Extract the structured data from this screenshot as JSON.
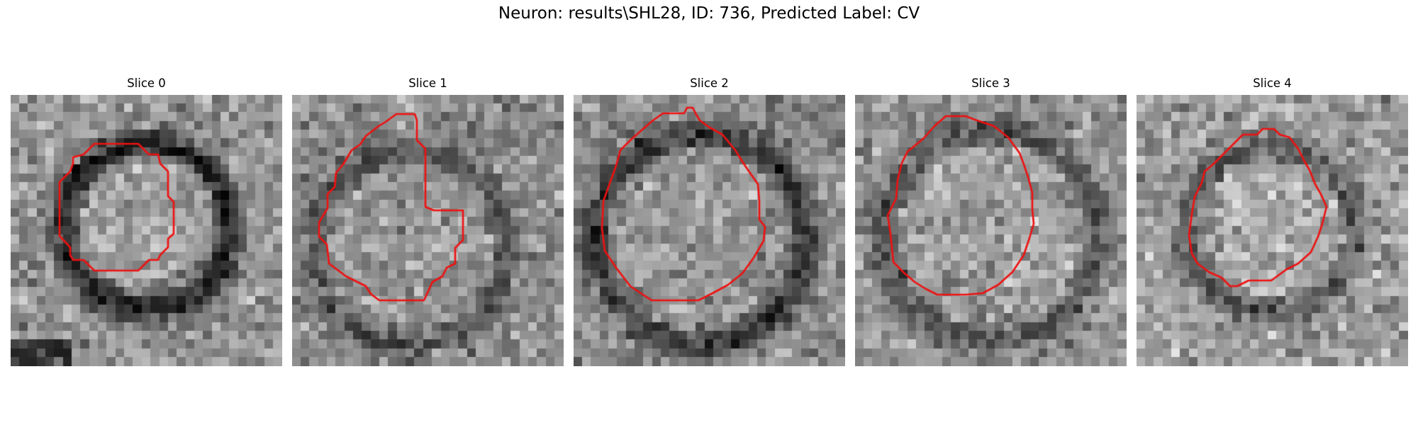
{
  "figure": {
    "title": "Neuron: results\\SHL28, ID: 736, Predicted Label: CV"
  },
  "panels": [
    {
      "title": "Slice 0"
    },
    {
      "title": "Slice 1"
    },
    {
      "title": "Slice 2"
    },
    {
      "title": "Slice 3"
    },
    {
      "title": "Slice 4"
    }
  ],
  "colors": {
    "contour": "#ee1111",
    "background": "#ffffff"
  }
}
